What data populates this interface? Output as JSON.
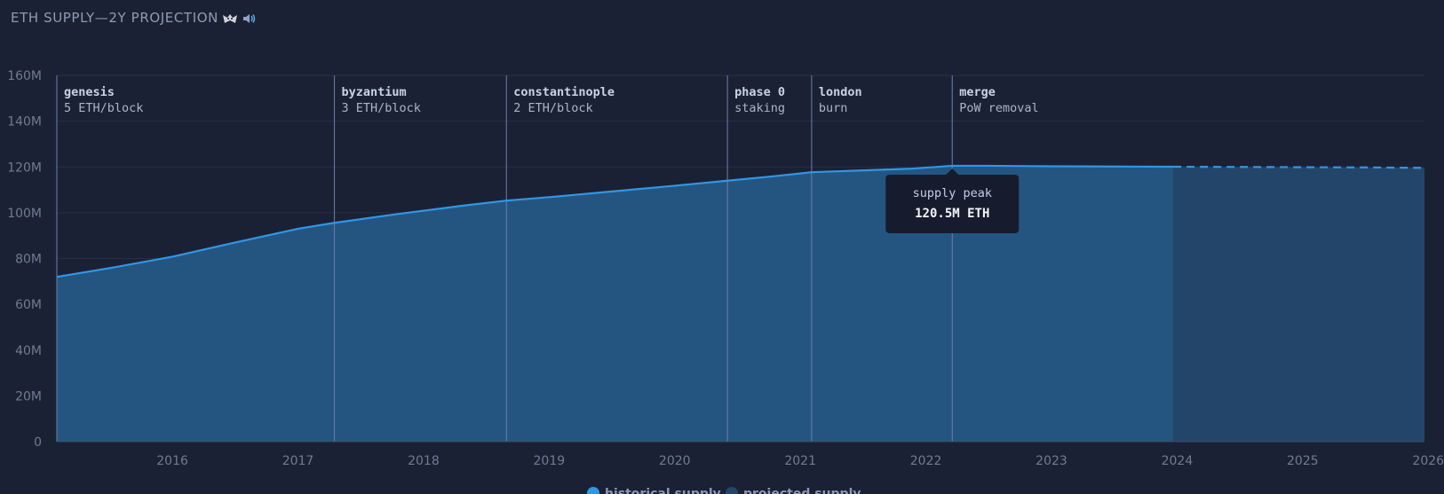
{
  "header": {
    "title": "ETH SUPPLY—2Y PROJECTION",
    "icons": [
      "ghost-icon",
      "speaker-icon"
    ]
  },
  "colors": {
    "background": "#1b2134",
    "line": "#2f97e6",
    "historical_fill": "#245580",
    "projected_fill": "#24456a",
    "marker": "#6a7fae",
    "grid": "#262e45",
    "tooltip_bg": "#161c2d"
  },
  "chart_data": {
    "type": "area",
    "title": "ETH SUPPLY—2Y PROJECTION",
    "xlabel": "",
    "ylabel": "",
    "xlim": [
      2015.58,
      2026.47
    ],
    "ylim": [
      0,
      160
    ],
    "y_ticks": [
      "0",
      "20M",
      "40M",
      "60M",
      "80M",
      "100M",
      "120M",
      "140M",
      "160M"
    ],
    "x_ticks": [
      "2016",
      "2017",
      "2018",
      "2019",
      "2020",
      "2021",
      "2022",
      "2023",
      "2024",
      "2025",
      "2026"
    ],
    "grid": true,
    "legend_position": "bottom-center",
    "series": [
      {
        "name": "historical supply",
        "style": "solid",
        "points": [
          [
            2015.58,
            72
          ],
          [
            2016.0,
            75.8
          ],
          [
            2016.5,
            80.8
          ],
          [
            2017.0,
            87.0
          ],
          [
            2017.5,
            93.0
          ],
          [
            2017.79,
            95.6
          ],
          [
            2018.3,
            99.5
          ],
          [
            2018.8,
            103.0
          ],
          [
            2019.16,
            105.3
          ],
          [
            2019.5,
            106.8
          ],
          [
            2020.0,
            109.3
          ],
          [
            2020.5,
            111.8
          ],
          [
            2020.92,
            114.0
          ],
          [
            2021.3,
            116.0
          ],
          [
            2021.59,
            117.7
          ],
          [
            2022.0,
            118.5
          ],
          [
            2022.4,
            119.3
          ],
          [
            2022.71,
            120.5
          ],
          [
            2023.0,
            120.5
          ],
          [
            2023.5,
            120.3
          ],
          [
            2024.0,
            120.2
          ],
          [
            2024.47,
            120.1
          ]
        ]
      },
      {
        "name": "projected supply",
        "style": "dashed",
        "points": [
          [
            2024.47,
            120.1
          ],
          [
            2025.0,
            120.0
          ],
          [
            2025.5,
            119.9
          ],
          [
            2026.0,
            119.8
          ],
          [
            2026.47,
            119.6
          ]
        ]
      }
    ],
    "events": [
      {
        "name": "genesis",
        "detail": "5 ETH/block",
        "x": 2015.58
      },
      {
        "name": "byzantium",
        "detail": "3 ETH/block",
        "x": 2017.79
      },
      {
        "name": "constantinople",
        "detail": "2 ETH/block",
        "x": 2019.16
      },
      {
        "name": "phase 0",
        "detail": "staking",
        "x": 2020.92
      },
      {
        "name": "london",
        "detail": "burn",
        "x": 2021.59
      },
      {
        "name": "merge",
        "detail": "PoW removal",
        "x": 2022.71
      }
    ],
    "annotation": {
      "title": "supply peak",
      "value": "120.5M ETH",
      "x": 2022.71,
      "y": 120.5
    }
  }
}
